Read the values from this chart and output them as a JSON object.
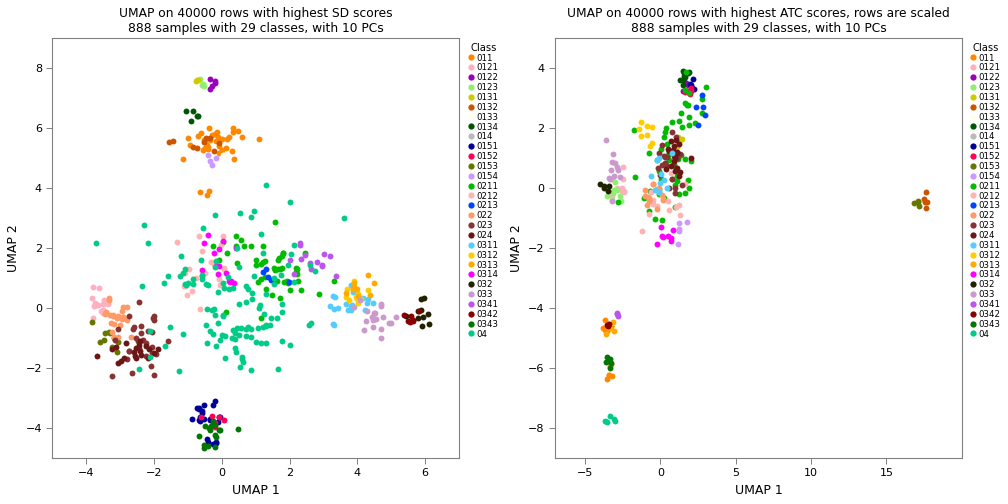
{
  "title1": "UMAP on 40000 rows with highest SD scores\n888 samples with 29 classes, with 10 PCs",
  "title2": "UMAP on 40000 rows with highest ATC scores, rows are scaled\n888 samples with 29 classes, with 10 PCs",
  "xlabel": "UMAP 1",
  "ylabel": "UMAP 2",
  "legend_title": "Class",
  "classes": [
    "011",
    "0121",
    "0122",
    "0123",
    "0131",
    "0132",
    "0133",
    "0134",
    "014",
    "0151",
    "0152",
    "0153",
    "0154",
    "0211",
    "0212",
    "0213",
    "022",
    "023",
    "024",
    "0311",
    "0312",
    "0313",
    "0314",
    "032",
    "033",
    "0341",
    "0342",
    "0343",
    "04"
  ],
  "colors": [
    "#FF8800",
    "#FFB0C0",
    "#9900BB",
    "#90EE70",
    "#CCCC00",
    "#CC5500",
    "#FFFFF0",
    "#005500",
    "#BBBBBB",
    "#000099",
    "#FF0055",
    "#667700",
    "#CC99FF",
    "#00BB00",
    "#FFB3B3",
    "#0044FF",
    "#FF9966",
    "#883333",
    "#6B1515",
    "#55CCFF",
    "#FFCC00",
    "#FFAA00",
    "#FF00FF",
    "#222200",
    "#CC99CC",
    "#BB55EE",
    "#880000",
    "#007700",
    "#00CC88"
  ],
  "xlim1": [
    -5,
    7
  ],
  "ylim1": [
    -5,
    9
  ],
  "xlim2": [
    -7,
    20
  ],
  "ylim2": [
    -9,
    5
  ],
  "xticks1": [
    -4,
    -2,
    0,
    2,
    4,
    6
  ],
  "yticks1": [
    -4,
    -2,
    0,
    2,
    4,
    6,
    8
  ],
  "xticks2": [
    -5,
    0,
    5,
    10,
    15
  ],
  "yticks2": [
    -8,
    -6,
    -4,
    -2,
    0,
    2,
    4
  ],
  "point_size": 18,
  "bg_color": "#FFFFFF"
}
